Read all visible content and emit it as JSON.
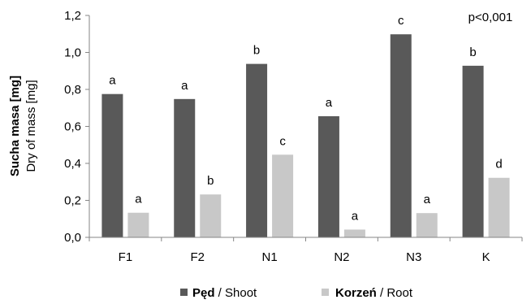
{
  "chart_data": {
    "type": "bar",
    "categories": [
      "F1",
      "F2",
      "N1",
      "N2",
      "N3",
      "K"
    ],
    "series": [
      {
        "name_bold": "Pęd",
        "name_rest": " / Shoot",
        "color": "#595959",
        "values": [
          0.775,
          0.748,
          0.938,
          0.655,
          1.098,
          0.928
        ],
        "letters": [
          "a",
          "a",
          "b",
          "a",
          "c",
          "b"
        ]
      },
      {
        "name_bold": "Korzeń",
        "name_rest": " / Root",
        "color": "#c8c8c8",
        "values": [
          0.133,
          0.232,
          0.447,
          0.042,
          0.131,
          0.322
        ],
        "letters": [
          "a",
          "b",
          "c",
          "a",
          "a",
          "d"
        ]
      }
    ],
    "ylabel_line1": "Sucha masa [mg]",
    "ylabel_line2": "Dry of mass [mg]",
    "ylim": [
      0,
      1.2
    ],
    "yticks": [
      "0,0",
      "0,2",
      "0,4",
      "0,6",
      "0,8",
      "1,0",
      "1,2"
    ],
    "annotation": "p<0,001",
    "grid": false,
    "legend_position": "bottom"
  }
}
